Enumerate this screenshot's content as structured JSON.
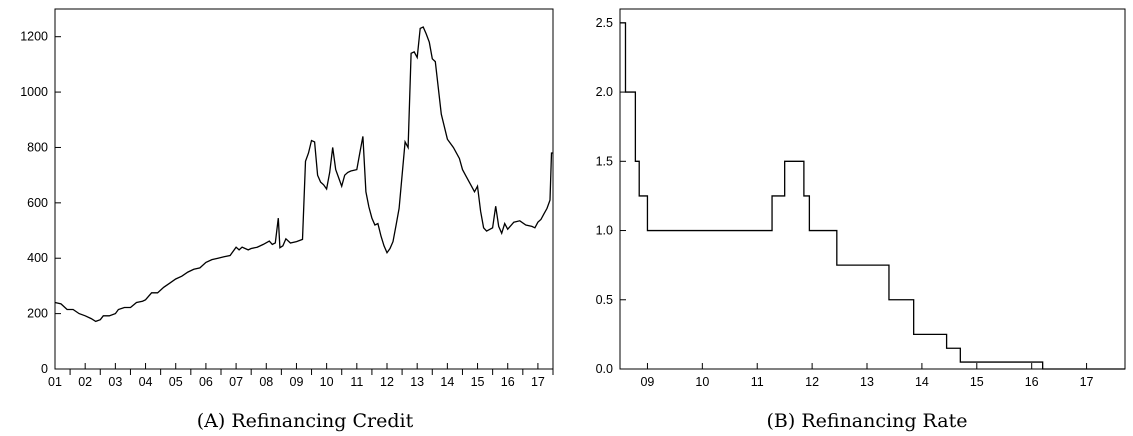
{
  "chart_data": [
    {
      "type": "line",
      "caption": "(A) Refinancing Credit",
      "title": "",
      "xlabel": "",
      "ylabel": "",
      "ylim": [
        0,
        1300
      ],
      "yticks": [
        0,
        200,
        400,
        600,
        800,
        1000,
        1200
      ],
      "xticks": [
        "01",
        "02",
        "03",
        "04",
        "05",
        "06",
        "07",
        "08",
        "09",
        "10",
        "11",
        "12",
        "13",
        "14",
        "15",
        "16",
        "17"
      ],
      "x_range": [
        2001.0,
        2017.5
      ],
      "grid": false,
      "series": [
        {
          "values": [
            [
              2001.0,
              240
            ],
            [
              2001.2,
              235
            ],
            [
              2001.4,
              215
            ],
            [
              2001.6,
              215
            ],
            [
              2001.8,
              200
            ],
            [
              2002.0,
              192
            ],
            [
              2002.2,
              182
            ],
            [
              2002.35,
              172
            ],
            [
              2002.5,
              178
            ],
            [
              2002.6,
              192
            ],
            [
              2002.8,
              192
            ],
            [
              2003.0,
              200
            ],
            [
              2003.1,
              215
            ],
            [
              2003.3,
              222
            ],
            [
              2003.5,
              222
            ],
            [
              2003.7,
              240
            ],
            [
              2003.9,
              245
            ],
            [
              2004.0,
              250
            ],
            [
              2004.2,
              275
            ],
            [
              2004.4,
              275
            ],
            [
              2004.6,
              295
            ],
            [
              2004.8,
              310
            ],
            [
              2005.0,
              325
            ],
            [
              2005.2,
              335
            ],
            [
              2005.4,
              350
            ],
            [
              2005.6,
              360
            ],
            [
              2005.8,
              365
            ],
            [
              2006.0,
              385
            ],
            [
              2006.2,
              395
            ],
            [
              2006.4,
              400
            ],
            [
              2006.6,
              405
            ],
            [
              2006.8,
              410
            ],
            [
              2007.0,
              440
            ],
            [
              2007.1,
              430
            ],
            [
              2007.2,
              440
            ],
            [
              2007.4,
              430
            ],
            [
              2007.5,
              435
            ],
            [
              2007.7,
              440
            ],
            [
              2007.9,
              450
            ],
            [
              2008.1,
              462
            ],
            [
              2008.2,
              450
            ],
            [
              2008.3,
              455
            ],
            [
              2008.4,
              545
            ],
            [
              2008.45,
              438
            ],
            [
              2008.55,
              445
            ],
            [
              2008.65,
              470
            ],
            [
              2008.8,
              455
            ],
            [
              2009.0,
              460
            ],
            [
              2009.2,
              468
            ],
            [
              2009.3,
              750
            ],
            [
              2009.4,
              780
            ],
            [
              2009.5,
              825
            ],
            [
              2009.6,
              820
            ],
            [
              2009.7,
              700
            ],
            [
              2009.8,
              675
            ],
            [
              2009.9,
              665
            ],
            [
              2010.0,
              650
            ],
            [
              2010.1,
              710
            ],
            [
              2010.2,
              800
            ],
            [
              2010.3,
              720
            ],
            [
              2010.4,
              690
            ],
            [
              2010.5,
              660
            ],
            [
              2010.6,
              700
            ],
            [
              2010.7,
              710
            ],
            [
              2010.8,
              715
            ],
            [
              2011.0,
              720
            ],
            [
              2011.1,
              780
            ],
            [
              2011.2,
              840
            ],
            [
              2011.3,
              640
            ],
            [
              2011.4,
              585
            ],
            [
              2011.5,
              545
            ],
            [
              2011.6,
              520
            ],
            [
              2011.7,
              525
            ],
            [
              2011.8,
              480
            ],
            [
              2011.9,
              445
            ],
            [
              2012.0,
              420
            ],
            [
              2012.1,
              435
            ],
            [
              2012.2,
              460
            ],
            [
              2012.3,
              520
            ],
            [
              2012.4,
              580
            ],
            [
              2012.5,
              700
            ],
            [
              2012.6,
              820
            ],
            [
              2012.7,
              800
            ],
            [
              2012.8,
              1140
            ],
            [
              2012.9,
              1145
            ],
            [
              2013.0,
              1125
            ],
            [
              2013.1,
              1230
            ],
            [
              2013.2,
              1235
            ],
            [
              2013.3,
              1210
            ],
            [
              2013.4,
              1180
            ],
            [
              2013.5,
              1120
            ],
            [
              2013.6,
              1110
            ],
            [
              2013.8,
              920
            ],
            [
              2014.0,
              830
            ],
            [
              2014.2,
              800
            ],
            [
              2014.4,
              760
            ],
            [
              2014.5,
              720
            ],
            [
              2014.6,
              700
            ],
            [
              2014.8,
              660
            ],
            [
              2014.9,
              640
            ],
            [
              2015.0,
              660
            ],
            [
              2015.1,
              570
            ],
            [
              2015.2,
              510
            ],
            [
              2015.3,
              498
            ],
            [
              2015.5,
              510
            ],
            [
              2015.6,
              588
            ],
            [
              2015.7,
              515
            ],
            [
              2015.8,
              490
            ],
            [
              2015.9,
              525
            ],
            [
              2016.0,
              505
            ],
            [
              2016.2,
              530
            ],
            [
              2016.4,
              535
            ],
            [
              2016.6,
              520
            ],
            [
              2016.8,
              515
            ],
            [
              2016.9,
              510
            ],
            [
              2017.0,
              530
            ],
            [
              2017.1,
              540
            ],
            [
              2017.2,
              560
            ],
            [
              2017.3,
              580
            ],
            [
              2017.4,
              610
            ],
            [
              2017.45,
              780
            ],
            [
              2017.5,
              780
            ]
          ]
        }
      ]
    },
    {
      "type": "line",
      "caption": "(B) Refinancing Rate",
      "title": "",
      "xlabel": "",
      "ylabel": "",
      "ylim": [
        0.0,
        2.6
      ],
      "yticks": [
        "0.0",
        "0.5",
        "1.0",
        "1.5",
        "2.0",
        "2.5"
      ],
      "xticks": [
        "09",
        "10",
        "11",
        "12",
        "13",
        "14",
        "15",
        "16",
        "17"
      ],
      "x_range": [
        2008.5,
        2017.7
      ],
      "grid": false,
      "series": [
        {
          "step": true,
          "values": [
            [
              2008.5,
              2.5
            ],
            [
              2008.6,
              2.0
            ],
            [
              2008.78,
              1.5
            ],
            [
              2008.85,
              1.25
            ],
            [
              2009.0,
              1.0
            ],
            [
              2011.27,
              1.25
            ],
            [
              2011.5,
              1.5
            ],
            [
              2011.85,
              1.25
            ],
            [
              2011.95,
              1.0
            ],
            [
              2012.45,
              0.75
            ],
            [
              2013.4,
              0.5
            ],
            [
              2013.85,
              0.25
            ],
            [
              2014.45,
              0.15
            ],
            [
              2014.7,
              0.05
            ],
            [
              2016.2,
              0.0
            ],
            [
              2017.7,
              0.0
            ]
          ]
        }
      ]
    }
  ]
}
